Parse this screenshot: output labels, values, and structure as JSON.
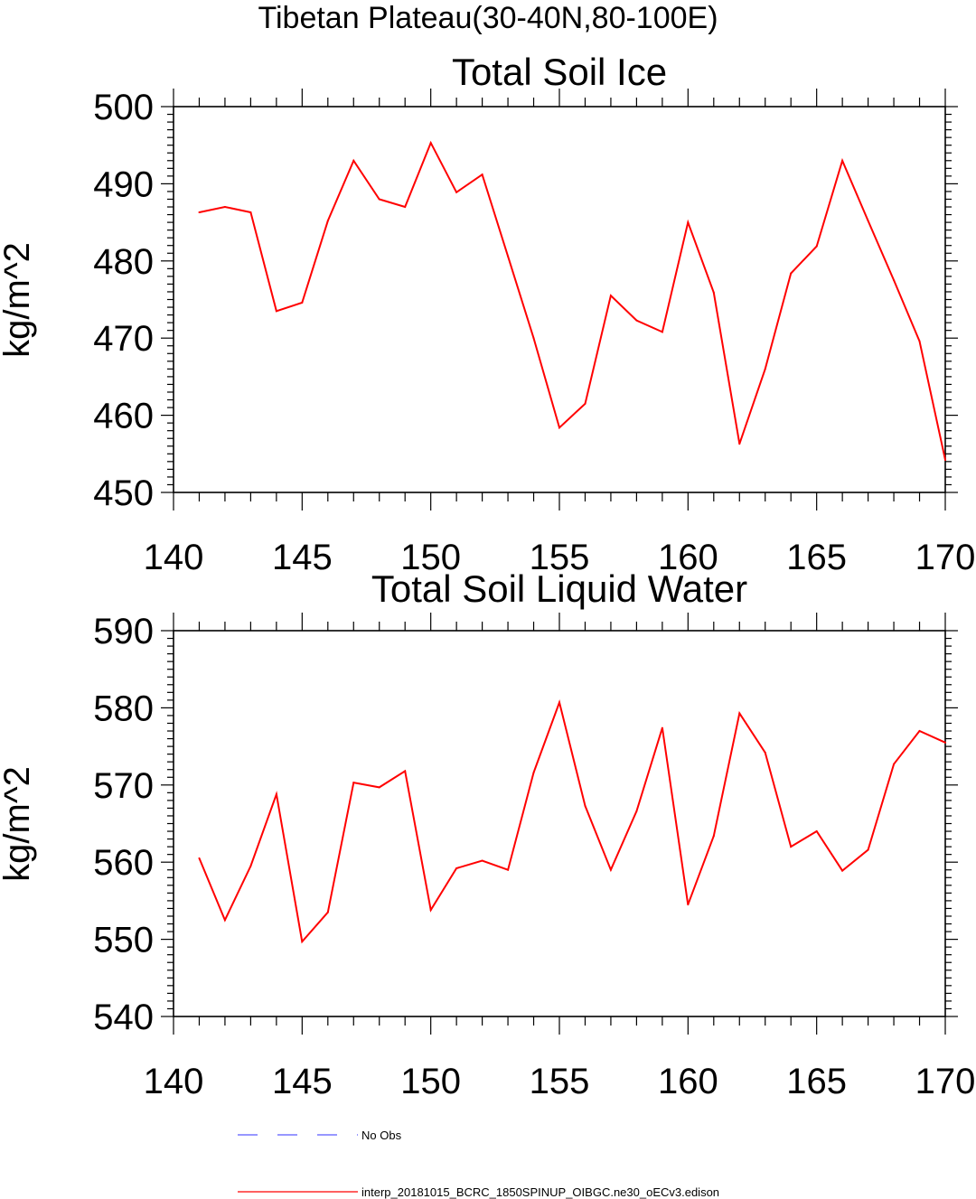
{
  "page_title": "Tibetan Plateau(30-40N,80-100E)",
  "chart_data": [
    {
      "type": "line",
      "title": "Total Soil Ice",
      "xlabel": "",
      "ylabel": "kg/m^2",
      "xlim": [
        140,
        170
      ],
      "ylim": [
        450,
        500
      ],
      "xticks": [
        140,
        145,
        150,
        155,
        160,
        165,
        170
      ],
      "yticks": [
        450,
        460,
        470,
        480,
        490,
        500
      ],
      "series": [
        {
          "name": "interp_20181015_BCRC_1850SPINUP_OIBGC.ne30_oECv3.edison",
          "color": "#ff0000",
          "x": [
            141,
            142,
            143,
            144,
            145,
            146,
            147,
            148,
            149,
            150,
            151,
            152,
            153,
            154,
            155,
            156,
            157,
            158,
            159,
            160,
            161,
            162,
            163,
            164,
            165,
            166,
            167,
            168,
            169,
            170
          ],
          "values": [
            486.3,
            487.0,
            486.3,
            473.5,
            474.6,
            485.2,
            493.0,
            488.0,
            487.0,
            495.3,
            488.9,
            491.2,
            480.6,
            470.0,
            458.4,
            461.5,
            475.5,
            472.3,
            470.8,
            485.0,
            475.9,
            456.3,
            466.0,
            478.4,
            481.9,
            493.0,
            485.2,
            477.5,
            469.6,
            454.2
          ]
        }
      ]
    },
    {
      "type": "line",
      "title": "Total Soil Liquid Water",
      "xlabel": "",
      "ylabel": "kg/m^2",
      "xlim": [
        140,
        170
      ],
      "ylim": [
        540,
        590
      ],
      "xticks": [
        140,
        145,
        150,
        155,
        160,
        165,
        170
      ],
      "yticks": [
        540,
        550,
        560,
        570,
        580,
        590
      ],
      "series": [
        {
          "name": "interp_20181015_BCRC_1850SPINUP_OIBGC.ne30_oECv3.edison",
          "color": "#ff0000",
          "x": [
            141,
            142,
            143,
            144,
            145,
            146,
            147,
            148,
            149,
            150,
            151,
            152,
            153,
            154,
            155,
            156,
            157,
            158,
            159,
            160,
            161,
            162,
            163,
            164,
            165,
            166,
            167,
            168,
            169,
            170
          ],
          "values": [
            560.5,
            552.5,
            559.5,
            568.8,
            549.7,
            553.5,
            570.3,
            569.7,
            571.8,
            553.8,
            559.2,
            560.2,
            559.0,
            571.6,
            580.7,
            567.3,
            559.0,
            566.6,
            577.4,
            554.5,
            563.4,
            579.3,
            574.2,
            562.0,
            564.0,
            558.9,
            561.6,
            572.7,
            577.0,
            575.5
          ]
        }
      ]
    }
  ],
  "legend": [
    {
      "label": "No Obs",
      "color": "#5a5aff",
      "style": "dashed"
    },
    {
      "label": "interp_20181015_BCRC_1850SPINUP_OIBGC.ne30_oECv3.edison",
      "color": "#ff0000",
      "style": "solid"
    }
  ]
}
